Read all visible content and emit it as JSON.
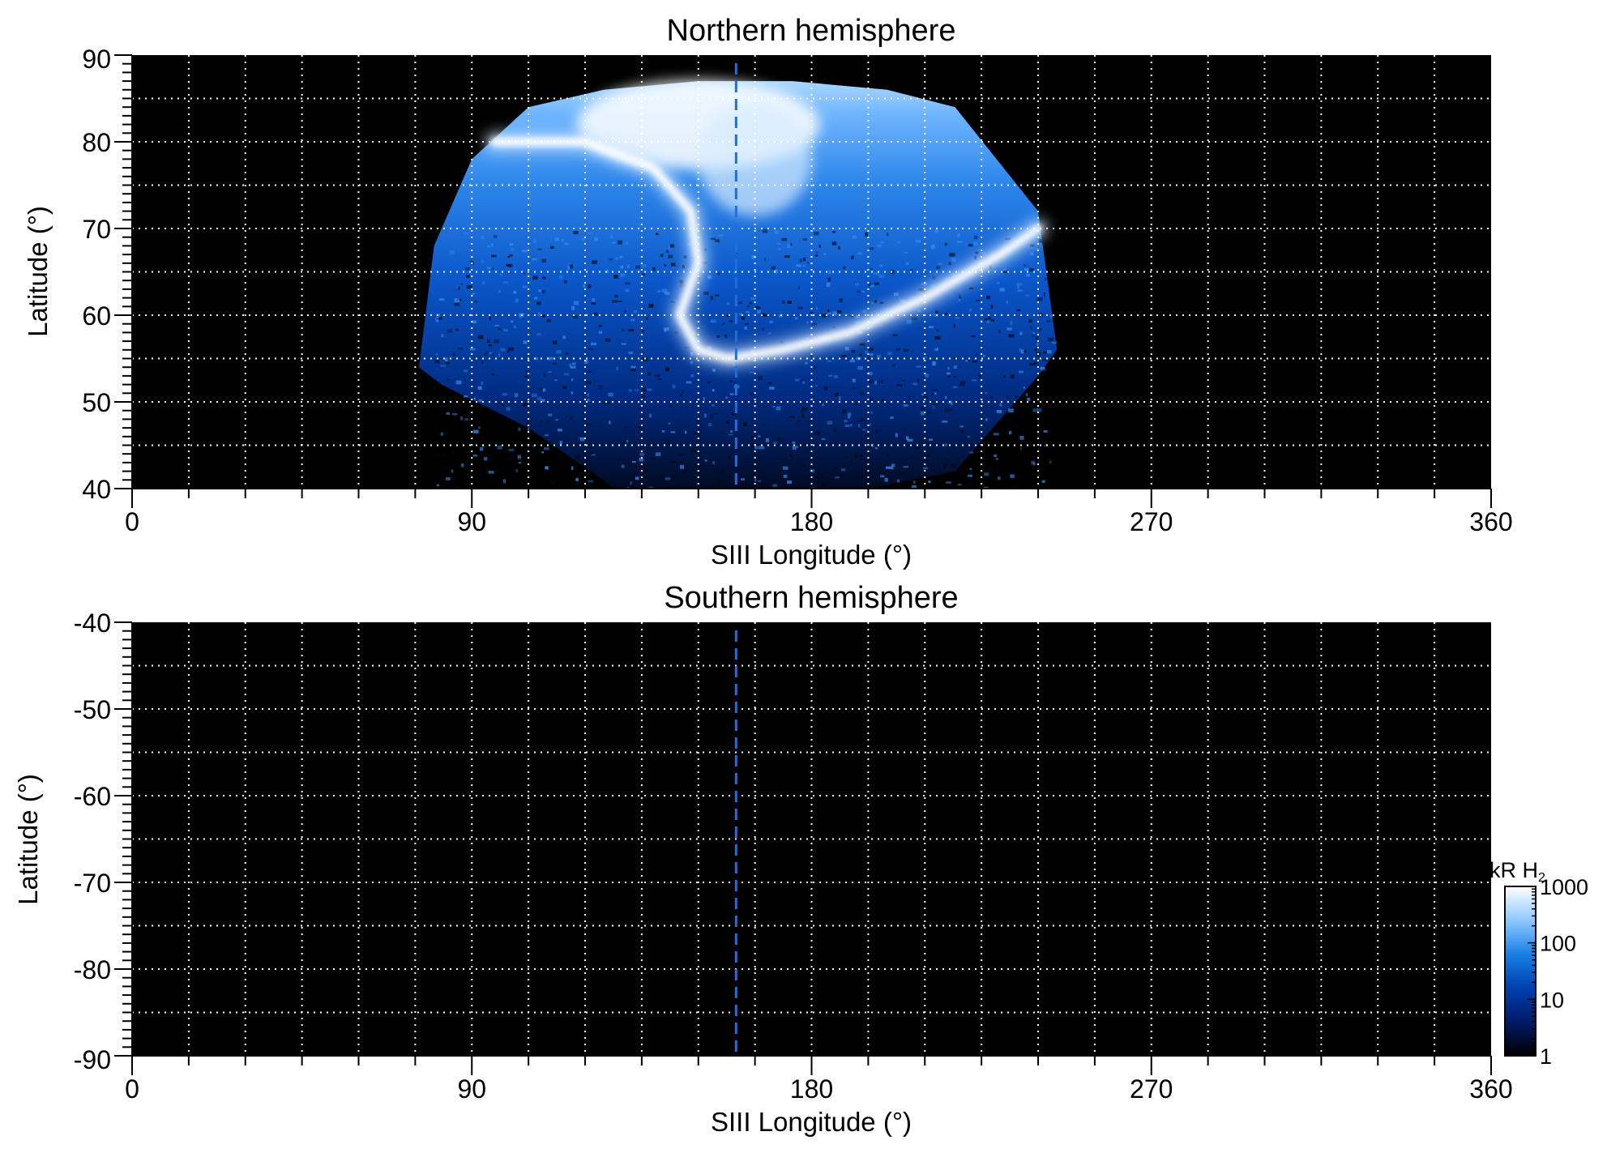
{
  "chart_data": [
    {
      "type": "heatmap",
      "title": "Northern hemisphere",
      "xlabel": "SIII Longitude (°)",
      "ylabel": "Latitude (°)",
      "xlim": [
        0,
        360
      ],
      "ylim": [
        40,
        90
      ],
      "x_ticks": [
        "0",
        "90",
        "180",
        "270",
        "360"
      ],
      "y_ticks": [
        "90",
        "80",
        "70",
        "60",
        "50",
        "40"
      ],
      "grid": true,
      "grid_color": "#ffffff",
      "background_color": "#000000",
      "reference_longitude": 160,
      "reference_line_color": "#1e6fd9",
      "emission_region": {
        "boundary_points": [
          [
            76,
            54
          ],
          [
            80,
            68
          ],
          [
            90,
            78
          ],
          [
            105,
            84
          ],
          [
            125,
            86
          ],
          [
            150,
            87
          ],
          [
            175,
            87
          ],
          [
            200,
            86
          ],
          [
            218,
            84
          ],
          [
            240,
            72
          ],
          [
            245,
            56
          ],
          [
            240,
            53
          ],
          [
            218,
            42
          ],
          [
            195,
            40
          ],
          [
            128,
            40
          ],
          [
            105,
            47
          ],
          [
            82,
            52
          ]
        ]
      },
      "main_oval": {
        "points": [
          [
            96,
            80
          ],
          [
            120,
            80
          ],
          [
            138,
            77
          ],
          [
            148,
            72
          ],
          [
            150,
            66
          ],
          [
            145,
            60
          ],
          [
            150,
            56
          ],
          [
            158,
            55
          ],
          [
            172,
            56
          ],
          [
            190,
            58
          ],
          [
            210,
            62
          ],
          [
            230,
            67
          ],
          [
            240,
            70
          ]
        ]
      }
    },
    {
      "type": "heatmap",
      "title": "Southern hemisphere",
      "xlabel": "SIII Longitude (°)",
      "ylabel": "Latitude (°)",
      "xlim": [
        0,
        360
      ],
      "ylim": [
        -90,
        -40
      ],
      "x_ticks": [
        "0",
        "90",
        "180",
        "270",
        "360"
      ],
      "y_ticks": [
        "-40",
        "-50",
        "-60",
        "-70",
        "-80",
        "-90"
      ],
      "grid": true,
      "grid_color": "#ffffff",
      "background_color": "#000000",
      "reference_longitude": 160,
      "reference_line_color": "#1e6fd9"
    }
  ],
  "colorbar": {
    "label_main": "kR H",
    "label_subscript": "2",
    "scale": "log",
    "range": [
      1,
      1000
    ],
    "ticks": [
      "1000",
      "100",
      "10",
      "1"
    ],
    "colors": [
      "#000000",
      "#001a66",
      "#0040b0",
      "#1a7fe6",
      "#8ec8ff",
      "#ffffff"
    ]
  }
}
